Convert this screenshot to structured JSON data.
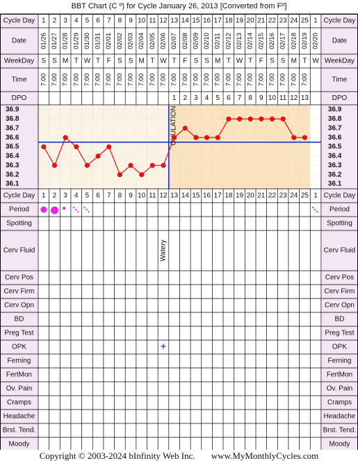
{
  "title": "BBT Chart (C º) for Cycle January 26, 2013  [Converted from Fº]",
  "footer": {
    "copyright": "Copyright © 2003-2024 bInfinity Web Inc.",
    "site": "www.MyMonthlyCycles.com"
  },
  "colors": {
    "label_bg": "#f4e6f4",
    "chart_bg": "#fbf3e6",
    "chart_bg_post": "#fbe3bf",
    "marker": "#ee1111",
    "line": "#1133cc",
    "period": "#ee22ee",
    "opk": "#8833cc"
  },
  "header_rows": {
    "cycle_day_label": "Cycle Day",
    "date_label": "Date",
    "weekday_label": "WeekDay",
    "time_label": "Time",
    "dpo_label": "DPO"
  },
  "cycle_days": [
    "1",
    "2",
    "3",
    "4",
    "5",
    "6",
    "7",
    "8",
    "9",
    "10",
    "11",
    "12",
    "13",
    "14",
    "15",
    "16",
    "17",
    "18",
    "19",
    "20",
    "21",
    "22",
    "23",
    "24",
    "25",
    "1"
  ],
  "dates": [
    "01/26",
    "01/27",
    "01/28",
    "01/29",
    "01/30",
    "01/31",
    "02/01",
    "02/02",
    "02/03",
    "02/04",
    "02/05",
    "02/06",
    "02/07",
    "02/08",
    "02/09",
    "02/10",
    "02/11",
    "02/12",
    "02/13",
    "02/14",
    "02/15",
    "02/16",
    "02/17",
    "02/18",
    "02/19",
    "02/20"
  ],
  "weekdays": [
    "S",
    "S",
    "M",
    "T",
    "W",
    "T",
    "F",
    "S",
    "S",
    "M",
    "T",
    "W",
    "T",
    "F",
    "S",
    "S",
    "M",
    "T",
    "W",
    "T",
    "F",
    "S",
    "S",
    "M",
    "T",
    "W"
  ],
  "times": [
    "7:00",
    "7:00",
    "7:00",
    "7:00",
    "7:00",
    "7:00",
    "7:00",
    "7:00",
    "7:00",
    "7:00",
    "7:00",
    "7:00",
    "7:00",
    "7:00",
    "7:00",
    "7:00",
    "7:00",
    "7:00",
    "7:00",
    "7:00",
    "7:00",
    "7:00",
    "7:00",
    "7:00",
    "7:00",
    ""
  ],
  "dpo": [
    "",
    "",
    "",
    "",
    "",
    "",
    "",
    "",
    "",
    "",
    "",
    "",
    "1",
    "2",
    "3",
    "4",
    "5",
    "6",
    "7",
    "8",
    "9",
    "10",
    "11",
    "12",
    "13",
    ""
  ],
  "chart_data": {
    "type": "line",
    "x": [
      "1",
      "2",
      "3",
      "4",
      "5",
      "6",
      "7",
      "8",
      "9",
      "10",
      "11",
      "12",
      "13",
      "14",
      "15",
      "16",
      "17",
      "18",
      "19",
      "20",
      "21",
      "22",
      "23",
      "24",
      "25"
    ],
    "series": [
      {
        "values": [
          36.5,
          36.3,
          36.6,
          36.5,
          36.3,
          36.4,
          36.5,
          36.2,
          36.3,
          36.2,
          36.3,
          36.3,
          36.6,
          36.7,
          36.6,
          36.6,
          36.6,
          36.8,
          36.8,
          36.8,
          36.8,
          36.8,
          36.8,
          36.6,
          36.6
        ]
      }
    ],
    "ylim": [
      36.1,
      36.9
    ],
    "yticks": [
      "36.9",
      "36.8",
      "36.7",
      "36.6",
      "36.5",
      "36.4",
      "36.3",
      "36.2",
      "36.1"
    ],
    "coverline": 36.55,
    "ovulation_after_day": 12,
    "ovulation_label": "OVULATION"
  },
  "observations": {
    "rows": [
      "Period",
      "Spotting",
      "Cerv Fluid",
      "Cerv Pos",
      "Cerv Firm",
      "Cerv Opn",
      "BD",
      "Preg Test",
      "OPK",
      "Ferning",
      "FertMon",
      "Ov. Pain",
      "Cramps",
      "Headache",
      "Brst. Tend.",
      "Moody"
    ],
    "period_levels": [
      3,
      4,
      2,
      1,
      1,
      0,
      0,
      0,
      0,
      0,
      0,
      0,
      0,
      0,
      0,
      0,
      0,
      0,
      0,
      0,
      0,
      0,
      0,
      0,
      0,
      1
    ],
    "cerv_fluid": {
      "day": 12,
      "text": "Watery"
    },
    "opk": {
      "day": 12,
      "symbol": "+"
    }
  }
}
